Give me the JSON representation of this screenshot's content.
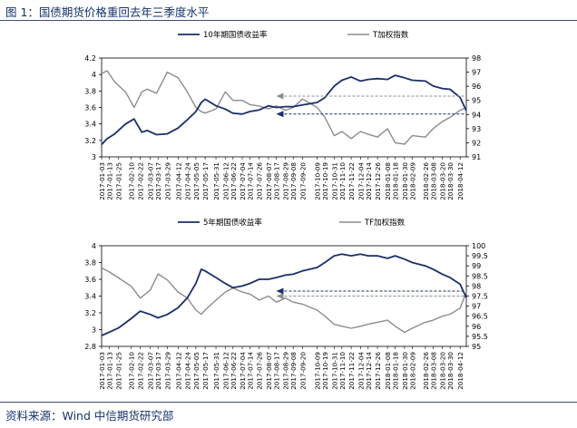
{
  "figure": {
    "title": "图 1：国债期货价格重回去年三季度水平",
    "source": "资料来源：Wind  中信期货研究部"
  },
  "chart_data": [
    {
      "type": "line",
      "dual_axis": true,
      "legend_position": "top",
      "x_start": "2017-01-03",
      "x_end": "2018-04-20",
      "x_tick_labels": [
        "2017-01-03",
        "2017-01-13",
        "2017-01-25",
        "2017-02-10",
        "2017-02-22",
        "2017-03-07",
        "2017-03-17",
        "2017-03-29",
        "2017-04-12",
        "2017-04-24",
        "2017-05-05",
        "2017-05-17",
        "2017-05-31",
        "2017-06-12",
        "2017-06-22",
        "2017-07-04",
        "2017-07-14",
        "2017-07-26",
        "2017-08-07",
        "2017-08-17",
        "2017-08-29",
        "2017-09-08",
        "2017-09-20",
        "2017-10-09",
        "2017-10-19",
        "2017-10-31",
        "2017-11-10",
        "2017-11-22",
        "2017-12-04",
        "2017-12-14",
        "2017-12-26",
        "2018-01-08",
        "2018-01-18",
        "2018-01-30",
        "2018-02-09",
        "2018-02-26",
        "2018-03-08",
        "2018-03-20",
        "2018-03-30",
        "2018-04-12"
      ],
      "y_left": {
        "min": 3,
        "max": 4.2,
        "ticks": [
          "3",
          "3.2",
          "3.4",
          "3.6",
          "3.8",
          "4",
          "4.2"
        ]
      },
      "y_right": {
        "min": 91,
        "max": 98,
        "ticks": [
          "91",
          "92",
          "93",
          "94",
          "95",
          "96",
          "97",
          "98"
        ]
      },
      "series": [
        {
          "name": "10年期国债收益率",
          "axis": "left",
          "color": "#1a2f6b",
          "points": [
            [
              "2017-01-03",
              3.15
            ],
            [
              "2017-01-10",
              3.22
            ],
            [
              "2017-01-20",
              3.28
            ],
            [
              "2017-02-03",
              3.4
            ],
            [
              "2017-02-14",
              3.46
            ],
            [
              "2017-02-24",
              3.3
            ],
            [
              "2017-03-03",
              3.32
            ],
            [
              "2017-03-15",
              3.27
            ],
            [
              "2017-03-29",
              3.28
            ],
            [
              "2017-04-12",
              3.35
            ],
            [
              "2017-04-24",
              3.45
            ],
            [
              "2017-05-05",
              3.55
            ],
            [
              "2017-05-12",
              3.66
            ],
            [
              "2017-05-17",
              3.7
            ],
            [
              "2017-05-31",
              3.62
            ],
            [
              "2017-06-12",
              3.58
            ],
            [
              "2017-06-22",
              3.53
            ],
            [
              "2017-07-04",
              3.52
            ],
            [
              "2017-07-14",
              3.55
            ],
            [
              "2017-07-26",
              3.57
            ],
            [
              "2017-08-07",
              3.62
            ],
            [
              "2017-08-17",
              3.6
            ],
            [
              "2017-08-29",
              3.61
            ],
            [
              "2017-09-08",
              3.61
            ],
            [
              "2017-09-20",
              3.63
            ],
            [
              "2017-10-09",
              3.66
            ],
            [
              "2017-10-19",
              3.72
            ],
            [
              "2017-10-31",
              3.86
            ],
            [
              "2017-11-10",
              3.93
            ],
            [
              "2017-11-22",
              3.97
            ],
            [
              "2017-12-04",
              3.92
            ],
            [
              "2017-12-14",
              3.94
            ],
            [
              "2017-12-26",
              3.95
            ],
            [
              "2018-01-08",
              3.94
            ],
            [
              "2018-01-18",
              3.99
            ],
            [
              "2018-01-30",
              3.96
            ],
            [
              "2018-02-09",
              3.93
            ],
            [
              "2018-02-26",
              3.92
            ],
            [
              "2018-03-08",
              3.86
            ],
            [
              "2018-03-20",
              3.83
            ],
            [
              "2018-03-30",
              3.82
            ],
            [
              "2018-04-12",
              3.72
            ],
            [
              "2018-04-20",
              3.56
            ]
          ]
        },
        {
          "name": "T加权指数",
          "axis": "right",
          "color": "#8c8c8c",
          "points": [
            [
              "2017-01-03",
              96.9
            ],
            [
              "2017-01-10",
              97.1
            ],
            [
              "2017-01-20",
              96.3
            ],
            [
              "2017-02-03",
              95.6
            ],
            [
              "2017-02-14",
              94.5
            ],
            [
              "2017-02-24",
              95.6
            ],
            [
              "2017-03-03",
              95.8
            ],
            [
              "2017-03-15",
              95.5
            ],
            [
              "2017-03-29",
              97.0
            ],
            [
              "2017-04-12",
              96.6
            ],
            [
              "2017-04-24",
              95.6
            ],
            [
              "2017-05-05",
              94.5
            ],
            [
              "2017-05-12",
              94.2
            ],
            [
              "2017-05-17",
              94.1
            ],
            [
              "2017-05-31",
              94.4
            ],
            [
              "2017-06-12",
              95.6
            ],
            [
              "2017-06-22",
              95.0
            ],
            [
              "2017-07-04",
              95.0
            ],
            [
              "2017-07-14",
              94.7
            ],
            [
              "2017-07-26",
              94.6
            ],
            [
              "2017-08-07",
              94.4
            ],
            [
              "2017-08-17",
              94.6
            ],
            [
              "2017-08-29",
              94.3
            ],
            [
              "2017-09-08",
              94.5
            ],
            [
              "2017-09-20",
              95.1
            ],
            [
              "2017-10-09",
              94.5
            ],
            [
              "2017-10-19",
              93.8
            ],
            [
              "2017-10-31",
              92.5
            ],
            [
              "2017-11-10",
              92.8
            ],
            [
              "2017-11-22",
              92.3
            ],
            [
              "2017-12-04",
              92.8
            ],
            [
              "2017-12-14",
              92.6
            ],
            [
              "2017-12-26",
              92.4
            ],
            [
              "2018-01-08",
              93.0
            ],
            [
              "2018-01-18",
              92.0
            ],
            [
              "2018-01-30",
              91.9
            ],
            [
              "2018-02-09",
              92.5
            ],
            [
              "2018-02-26",
              92.4
            ],
            [
              "2018-03-08",
              93.0
            ],
            [
              "2018-03-20",
              93.5
            ],
            [
              "2018-03-30",
              93.8
            ],
            [
              "2018-04-12",
              94.3
            ],
            [
              "2018-04-20",
              94.5
            ]
          ]
        }
      ],
      "annotations": [
        {
          "type": "arrow",
          "color": "#8c8c8c",
          "from_date": "2018-04-17",
          "to_date": "2017-08-17",
          "y_axis": "right",
          "y": 95.3
        },
        {
          "type": "arrow",
          "color": "#1a2f6b",
          "from_date": "2018-04-17",
          "to_date": "2017-08-17",
          "y_axis": "left",
          "y": 3.52
        }
      ]
    },
    {
      "type": "line",
      "dual_axis": true,
      "legend_position": "top",
      "x_start": "2017-01-03",
      "x_end": "2018-04-20",
      "x_tick_labels": [
        "2017-01-03",
        "2017-01-13",
        "2017-01-25",
        "2017-02-10",
        "2017-02-22",
        "2017-03-07",
        "2017-03-17",
        "2017-03-29",
        "2017-04-12",
        "2017-04-24",
        "2017-05-05",
        "2017-05-17",
        "2017-05-31",
        "2017-06-12",
        "2017-06-22",
        "2017-07-04",
        "2017-07-14",
        "2017-07-26",
        "2017-08-07",
        "2017-08-17",
        "2017-08-29",
        "2017-09-08",
        "2017-09-20",
        "2017-10-09",
        "2017-10-19",
        "2017-10-31",
        "2017-11-10",
        "2017-11-22",
        "2017-12-04",
        "2017-12-14",
        "2017-12-26",
        "2018-01-08",
        "2018-01-18",
        "2018-01-30",
        "2018-02-09",
        "2018-02-26",
        "2018-03-08",
        "2018-03-20",
        "2018-03-30",
        "2018-04-12"
      ],
      "y_left": {
        "min": 2.8,
        "max": 4,
        "ticks": [
          "2.8",
          "3",
          "3.2",
          "3.4",
          "3.6",
          "3.8",
          "4"
        ]
      },
      "y_right": {
        "min": 95,
        "max": 100,
        "ticks": [
          "95",
          "95.5",
          "96",
          "96.5",
          "97",
          "97.5",
          "98",
          "98.5",
          "99",
          "99.5",
          "100"
        ]
      },
      "series": [
        {
          "name": "5年期国债收益率",
          "axis": "left",
          "color": "#1a2f6b",
          "points": [
            [
              "2017-01-03",
              2.93
            ],
            [
              "2017-01-13",
              2.97
            ],
            [
              "2017-01-25",
              3.02
            ],
            [
              "2017-02-10",
              3.13
            ],
            [
              "2017-02-22",
              3.22
            ],
            [
              "2017-03-07",
              3.18
            ],
            [
              "2017-03-17",
              3.14
            ],
            [
              "2017-03-29",
              3.18
            ],
            [
              "2017-04-12",
              3.26
            ],
            [
              "2017-04-24",
              3.38
            ],
            [
              "2017-05-05",
              3.55
            ],
            [
              "2017-05-12",
              3.72
            ],
            [
              "2017-05-17",
              3.7
            ],
            [
              "2017-05-31",
              3.62
            ],
            [
              "2017-06-12",
              3.55
            ],
            [
              "2017-06-22",
              3.5
            ],
            [
              "2017-07-04",
              3.52
            ],
            [
              "2017-07-14",
              3.55
            ],
            [
              "2017-07-26",
              3.6
            ],
            [
              "2017-08-07",
              3.6
            ],
            [
              "2017-08-17",
              3.62
            ],
            [
              "2017-08-29",
              3.65
            ],
            [
              "2017-09-08",
              3.66
            ],
            [
              "2017-09-20",
              3.7
            ],
            [
              "2017-10-09",
              3.74
            ],
            [
              "2017-10-19",
              3.8
            ],
            [
              "2017-10-31",
              3.88
            ],
            [
              "2017-11-10",
              3.9
            ],
            [
              "2017-11-22",
              3.88
            ],
            [
              "2017-12-04",
              3.9
            ],
            [
              "2017-12-14",
              3.88
            ],
            [
              "2017-12-26",
              3.88
            ],
            [
              "2018-01-08",
              3.85
            ],
            [
              "2018-01-18",
              3.88
            ],
            [
              "2018-01-30",
              3.84
            ],
            [
              "2018-02-09",
              3.8
            ],
            [
              "2018-02-26",
              3.76
            ],
            [
              "2018-03-08",
              3.72
            ],
            [
              "2018-03-20",
              3.66
            ],
            [
              "2018-03-30",
              3.62
            ],
            [
              "2018-04-12",
              3.54
            ],
            [
              "2018-04-20",
              3.38
            ]
          ]
        },
        {
          "name": "TF加权指数",
          "axis": "right",
          "color": "#8c8c8c",
          "points": [
            [
              "2017-01-03",
              98.9
            ],
            [
              "2017-01-13",
              98.7
            ],
            [
              "2017-01-25",
              98.4
            ],
            [
              "2017-02-10",
              98.0
            ],
            [
              "2017-02-22",
              97.4
            ],
            [
              "2017-03-07",
              97.8
            ],
            [
              "2017-03-17",
              98.6
            ],
            [
              "2017-03-29",
              98.3
            ],
            [
              "2017-04-12",
              97.7
            ],
            [
              "2017-04-24",
              97.4
            ],
            [
              "2017-05-05",
              96.8
            ],
            [
              "2017-05-12",
              96.6
            ],
            [
              "2017-05-17",
              96.8
            ],
            [
              "2017-05-31",
              97.3
            ],
            [
              "2017-06-12",
              97.7
            ],
            [
              "2017-06-22",
              97.9
            ],
            [
              "2017-07-04",
              97.7
            ],
            [
              "2017-07-14",
              97.6
            ],
            [
              "2017-07-26",
              97.3
            ],
            [
              "2017-08-07",
              97.5
            ],
            [
              "2017-08-17",
              97.2
            ],
            [
              "2017-08-29",
              97.4
            ],
            [
              "2017-09-08",
              97.2
            ],
            [
              "2017-09-20",
              97.1
            ],
            [
              "2017-10-09",
              96.8
            ],
            [
              "2017-10-19",
              96.5
            ],
            [
              "2017-10-31",
              96.1
            ],
            [
              "2017-11-10",
              96.0
            ],
            [
              "2017-11-22",
              95.9
            ],
            [
              "2017-12-04",
              96.0
            ],
            [
              "2017-12-14",
              96.1
            ],
            [
              "2017-12-26",
              96.2
            ],
            [
              "2018-01-08",
              96.3
            ],
            [
              "2018-01-18",
              96.0
            ],
            [
              "2018-01-30",
              95.7
            ],
            [
              "2018-02-09",
              95.9
            ],
            [
              "2018-02-26",
              96.2
            ],
            [
              "2018-03-08",
              96.3
            ],
            [
              "2018-03-20",
              96.5
            ],
            [
              "2018-03-30",
              96.6
            ],
            [
              "2018-04-12",
              96.9
            ],
            [
              "2018-04-20",
              97.7
            ]
          ]
        }
      ],
      "annotations": [
        {
          "type": "arrow",
          "color": "#8c8c8c",
          "from_date": "2018-04-17",
          "to_date": "2017-08-17",
          "y_axis": "right",
          "y": 97.5
        },
        {
          "type": "arrow",
          "color": "#1a2f6b",
          "from_date": "2018-04-17",
          "to_date": "2017-08-17",
          "y_axis": "left",
          "y": 3.46
        }
      ]
    }
  ]
}
